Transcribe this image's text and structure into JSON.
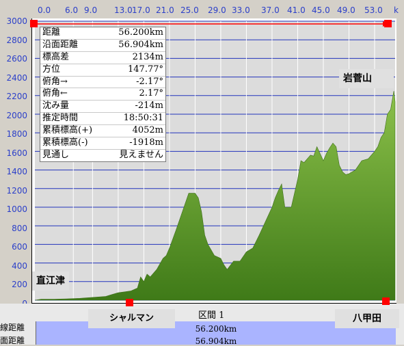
{
  "x_axis": {
    "ticks": [
      "0.0",
      "6.0",
      "9.0",
      "13.0",
      "17.0",
      "21.0",
      "25.0",
      "29.0",
      "33.0",
      "37.0",
      "41.0",
      "45.0",
      "49.0",
      "53.0"
    ],
    "end_mark": "k"
  },
  "y_axis": {
    "ticks": [
      "3000",
      "2800",
      "2600",
      "2400",
      "2200",
      "2000",
      "1800",
      "1600",
      "1400",
      "1200",
      "1000",
      "800",
      "600",
      "400",
      "200",
      "0"
    ]
  },
  "info_panel": {
    "rows": [
      {
        "label": "距離",
        "value": "56.200km"
      },
      {
        "label": "沿面距離",
        "value": "56.904km"
      },
      {
        "label": "標高差",
        "value": "2134m"
      },
      {
        "label": "方位",
        "value": "147.77°"
      },
      {
        "label": "俯角→",
        "value": "-2.17°"
      },
      {
        "label": "俯角←",
        "value": "2.17°"
      },
      {
        "label": "沈み量",
        "value": "-214m"
      },
      {
        "label": "推定時間",
        "value": "18:50:31"
      },
      {
        "label": "累積標高(+)",
        "value": "4052m"
      },
      {
        "label": "累積標高(-)",
        "value": "-1918m"
      },
      {
        "label": "見通し",
        "value": "見えません"
      }
    ]
  },
  "places": {
    "start": "直江津",
    "peak": "岩菅山",
    "waypoint": "シャルマン",
    "end": "八甲田"
  },
  "section_label": "区間 1",
  "bottom_values": {
    "distance": "56.200km",
    "surface_distance": "56.904km"
  },
  "bottom_left_labels": {
    "line1": "線距離",
    "line2": "面距離"
  },
  "colors": {
    "fill": "#5e9a2a",
    "grid": "#2233bb",
    "marker": "#ff0000",
    "axis_text": "#2b3fc9"
  },
  "chart_data": {
    "type": "area",
    "x_unit": "km",
    "ylim": [
      0,
      3000
    ],
    "xlim": [
      0,
      56.2
    ],
    "x": [
      0,
      1,
      3,
      5,
      7,
      9,
      11,
      12,
      13,
      14,
      15,
      16,
      16.5,
      17,
      17.5,
      18,
      19,
      20,
      20.5,
      21,
      22,
      23,
      24,
      25,
      25.5,
      26,
      26.5,
      27,
      28,
      29,
      29.5,
      30,
      31,
      32,
      33,
      34,
      35,
      36,
      37,
      37.5,
      38,
      38.5,
      39,
      40,
      41,
      41.5,
      42,
      43,
      43.5,
      44,
      45,
      45.5,
      46,
      46.5,
      47,
      47.5,
      48,
      48.5,
      49,
      50,
      51,
      52,
      53,
      53.5,
      54,
      54.5,
      55,
      55.5,
      56,
      56.2
    ],
    "y": [
      0,
      10,
      10,
      15,
      20,
      30,
      40,
      60,
      80,
      90,
      100,
      130,
      250,
      200,
      280,
      250,
      330,
      450,
      480,
      560,
      750,
      950,
      1150,
      1150,
      1100,
      950,
      700,
      600,
      480,
      450,
      380,
      330,
      420,
      420,
      520,
      560,
      700,
      850,
      1000,
      1100,
      1180,
      1250,
      1000,
      1000,
      1300,
      1500,
      1480,
      1560,
      1550,
      1650,
      1500,
      1580,
      1640,
      1690,
      1650,
      1450,
      1380,
      1350,
      1360,
      1400,
      1500,
      1520,
      1600,
      1650,
      1750,
      1800,
      2000,
      2050,
      2250,
      2134
    ]
  }
}
